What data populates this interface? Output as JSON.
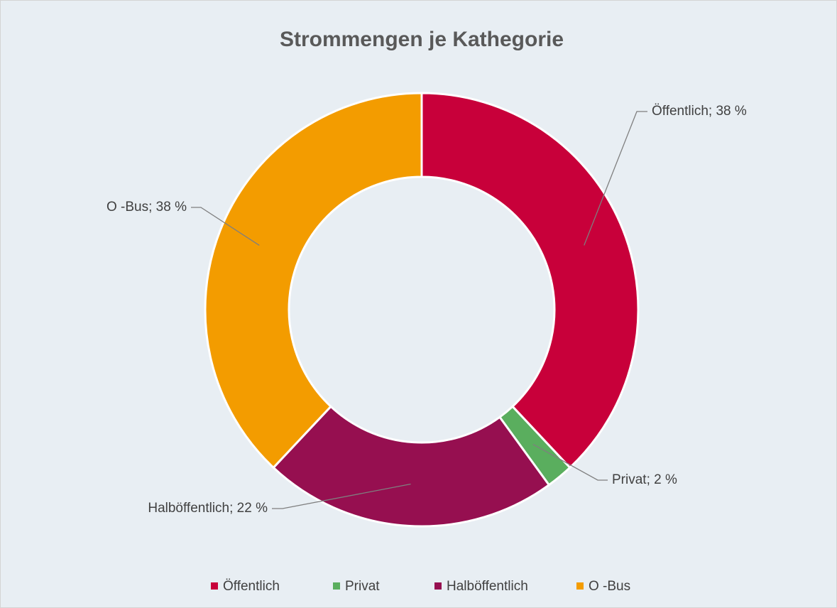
{
  "chart_data": {
    "type": "donut",
    "title": "Strommengen je Kathegorie",
    "categories": [
      "Öffentlich",
      "Privat",
      "Halböffentlich",
      "O -Bus"
    ],
    "values": [
      38,
      2,
      22,
      38
    ],
    "value_labels": [
      "Öffentlich; 38 %",
      "Privat; 2 %",
      "Halböffentlich; 22 %",
      "O -Bus; 38 %"
    ],
    "colors": [
      "#c8003a",
      "#5aae5e",
      "#960f50",
      "#f39c00"
    ],
    "legend": "bottom"
  }
}
